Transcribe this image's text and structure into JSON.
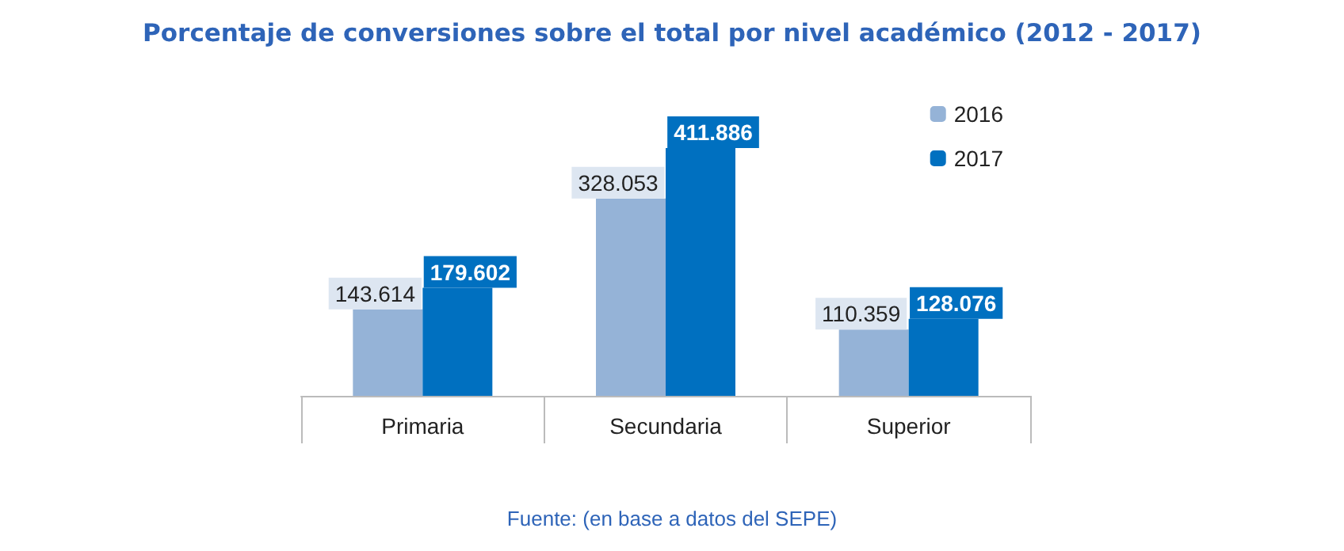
{
  "chart_data": {
    "type": "bar",
    "title": "Porcentaje de conversiones sobre el total por nivel académico (2012 - 2017)",
    "categories": [
      "Primaria",
      "Secundaria",
      "Superior"
    ],
    "series": [
      {
        "name": "2016",
        "color": "#95b3d7",
        "values": [
          143614,
          328053,
          110359
        ],
        "value_labels": [
          "143.614",
          "328.053",
          "110.359"
        ]
      },
      {
        "name": "2017",
        "color": "#0070c0",
        "values": [
          179602,
          411886,
          128076
        ],
        "value_labels": [
          "179.602",
          "411.886",
          "128.076"
        ]
      }
    ],
    "legend": "top right",
    "annotations": [
      "Fuente: (en base a datos del SEPE)"
    ]
  }
}
